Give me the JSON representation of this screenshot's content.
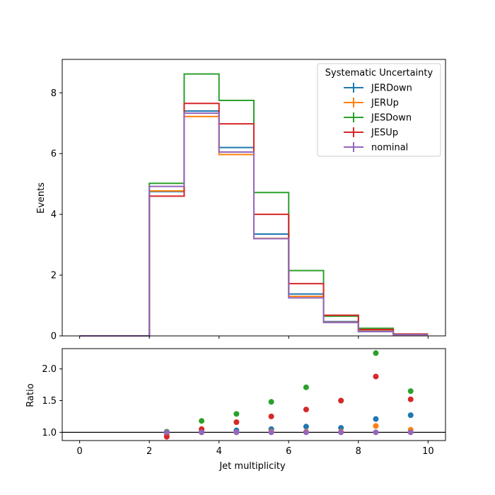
{
  "chart_data": [
    {
      "type": "line",
      "style": "step-histogram",
      "ylabel": "Events",
      "xlim": [
        -0.5,
        10.5
      ],
      "ylim": [
        0,
        9.1
      ],
      "yticks": [
        0,
        2,
        4,
        6,
        8
      ],
      "bin_edges": [
        0,
        1,
        2,
        3,
        4,
        5,
        6,
        7,
        8,
        9,
        10
      ],
      "legend": {
        "title": "Systematic Uncertainty",
        "placement": "top-right"
      },
      "series": [
        {
          "name": "JERDown",
          "color": "#1f77b4",
          "values": [
            0,
            0,
            4.75,
            7.4,
            6.2,
            3.35,
            1.38,
            0.47,
            0.16,
            0.05
          ]
        },
        {
          "name": "JERUp",
          "color": "#ff7f0e",
          "values": [
            0,
            0,
            4.77,
            7.22,
            5.97,
            3.21,
            1.3,
            0.45,
            0.15,
            0.04
          ]
        },
        {
          "name": "JESDown",
          "color": "#2ca02c",
          "values": [
            0,
            0,
            5.02,
            8.62,
            7.75,
            4.72,
            2.15,
            0.65,
            0.25,
            0.06
          ]
        },
        {
          "name": "JESUp",
          "color": "#d62728",
          "values": [
            0,
            0,
            4.6,
            7.65,
            6.98,
            4.0,
            1.72,
            0.68,
            0.21,
            0.06
          ]
        },
        {
          "name": "nominal",
          "color": "#9467bd",
          "values": [
            0,
            0,
            4.92,
            7.33,
            6.05,
            3.2,
            1.25,
            0.44,
            0.14,
            0.04
          ]
        }
      ]
    },
    {
      "type": "scatter",
      "xlabel": "Jet multiplicity",
      "ylabel": "Ratio",
      "xlim": [
        -0.5,
        10.5
      ],
      "ylim": [
        0.87,
        2.32
      ],
      "yticks": [
        1.0,
        1.5,
        2.0
      ],
      "xticks": [
        0,
        2,
        4,
        6,
        8,
        10
      ],
      "reference_line": 1.0,
      "x": [
        2.5,
        3.5,
        4.5,
        5.5,
        6.5,
        7.5,
        8.5,
        9.5
      ],
      "series": [
        {
          "name": "JERDown",
          "color": "#1f77b4",
          "values": [
            0.97,
            1.01,
            1.03,
            1.05,
            1.09,
            1.07,
            1.21,
            1.27
          ]
        },
        {
          "name": "JERUp",
          "color": "#ff7f0e",
          "values": [
            0.97,
            1.0,
            1.0,
            1.01,
            1.01,
            1.01,
            1.1,
            1.04
          ]
        },
        {
          "name": "JESDown",
          "color": "#2ca02c",
          "values": [
            1.01,
            1.18,
            1.29,
            1.48,
            1.71,
            1.5,
            2.25,
            1.65
          ]
        },
        {
          "name": "JESUp",
          "color": "#d62728",
          "values": [
            0.93,
            1.05,
            1.16,
            1.25,
            1.36,
            1.5,
            1.88,
            1.52
          ]
        },
        {
          "name": "nominal",
          "color": "#9467bd",
          "values": [
            1.0,
            1.0,
            1.0,
            1.0,
            1.0,
            1.0,
            1.0,
            1.0
          ]
        }
      ]
    }
  ]
}
